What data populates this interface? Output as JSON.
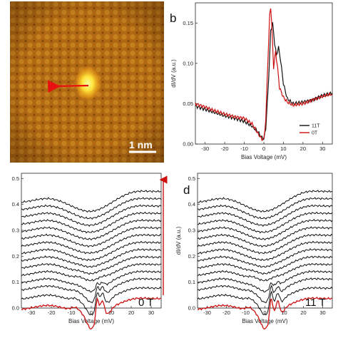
{
  "panels": {
    "a": {
      "scale_bar_label": "1 nm",
      "colors": {
        "background_dark": "#5a2d05",
        "background_light": "#c77a1a",
        "defect_center": "#ffff66",
        "arrow": "#e81010"
      }
    },
    "b": {
      "label": "b"
    },
    "c": {
      "field_label": "0 T"
    },
    "d": {
      "label": "d",
      "field_label": "11 T"
    }
  },
  "colors": {
    "black": "#111111",
    "red": "#cc1111"
  },
  "chart_data": [
    {
      "id": "b",
      "type": "line",
      "xlabel": "Bias Voltage (mV)",
      "ylabel": "dI/dV (a.u.)",
      "xlim": [
        -35,
        35
      ],
      "ylim": [
        0,
        0.175
      ],
      "xticks": [
        -30,
        -20,
        -10,
        0,
        10,
        20,
        30
      ],
      "yticks": [
        0.0,
        0.05,
        0.1,
        0.15
      ],
      "ytick_labels": [
        "0.00",
        "0.05",
        "0.10",
        "0.15"
      ],
      "legend_position": "bottom-right",
      "series": [
        {
          "name": "11T",
          "color": "#111111",
          "x": [
            -35,
            -30,
            -25,
            -20,
            -15,
            -10,
            -6,
            -3,
            -1,
            0,
            1,
            2,
            3,
            3.5,
            4.5,
            5.5,
            6.5,
            7.5,
            8.5,
            10,
            12,
            15,
            20,
            25,
            30,
            35
          ],
          "y": [
            0.047,
            0.043,
            0.039,
            0.035,
            0.032,
            0.028,
            0.022,
            0.015,
            0.008,
            0.006,
            0.02,
            0.06,
            0.11,
            0.14,
            0.15,
            0.125,
            0.11,
            0.12,
            0.105,
            0.075,
            0.056,
            0.05,
            0.052,
            0.055,
            0.06,
            0.063
          ]
        },
        {
          "name": "0T",
          "color": "#cc1111",
          "x": [
            -35,
            -30,
            -25,
            -20,
            -15,
            -10,
            -6,
            -3,
            -1,
            0,
            1,
            2,
            3,
            3.5,
            4,
            5,
            6,
            7,
            8,
            10,
            12,
            15,
            20,
            25,
            30,
            35
          ],
          "y": [
            0.05,
            0.046,
            0.041,
            0.037,
            0.034,
            0.032,
            0.025,
            0.013,
            0.006,
            0.006,
            0.03,
            0.1,
            0.16,
            0.17,
            0.15,
            0.095,
            0.115,
            0.095,
            0.07,
            0.058,
            0.052,
            0.048,
            0.05,
            0.055,
            0.059,
            0.062
          ]
        }
      ]
    },
    {
      "id": "c",
      "type": "line",
      "xlabel": "Bias Voltage (mV)",
      "ylabel": "",
      "xlim": [
        -35,
        35
      ],
      "ylim": [
        0,
        0.52
      ],
      "xticks": [
        -30,
        -20,
        -10,
        0,
        10,
        20,
        30
      ],
      "yticks": [
        0.0,
        0.1,
        0.2,
        0.3,
        0.4,
        0.5
      ],
      "ytick_labels": [
        "0.0",
        "0.1",
        "0.2",
        "0.3",
        "0.4",
        "0.5"
      ],
      "vertical_offset_curves": 15,
      "offset_step": 0.0282,
      "base_offsets": [
        0.015,
        0.055,
        0.09
      ],
      "highlight_color": "#cc1111",
      "line_color": "#111111"
    },
    {
      "id": "d",
      "type": "line",
      "xlabel": "Bias Voltage (mV)",
      "ylabel": "dI/dV (a.u.)",
      "xlim": [
        -35,
        35
      ],
      "ylim": [
        0,
        0.52
      ],
      "xticks": [
        -30,
        -20,
        -10,
        0,
        10,
        20,
        30
      ],
      "yticks": [
        0.0,
        0.1,
        0.2,
        0.3,
        0.4,
        0.5
      ],
      "ytick_labels": [
        "0.0",
        "0.1",
        "0.2",
        "0.3",
        "0.4",
        "0.5"
      ],
      "vertical_offset_curves": 15,
      "offset_step": 0.0282,
      "base_offsets": [
        0.015,
        0.055,
        0.09
      ],
      "highlight_color": "#cc1111",
      "line_color": "#111111"
    }
  ]
}
